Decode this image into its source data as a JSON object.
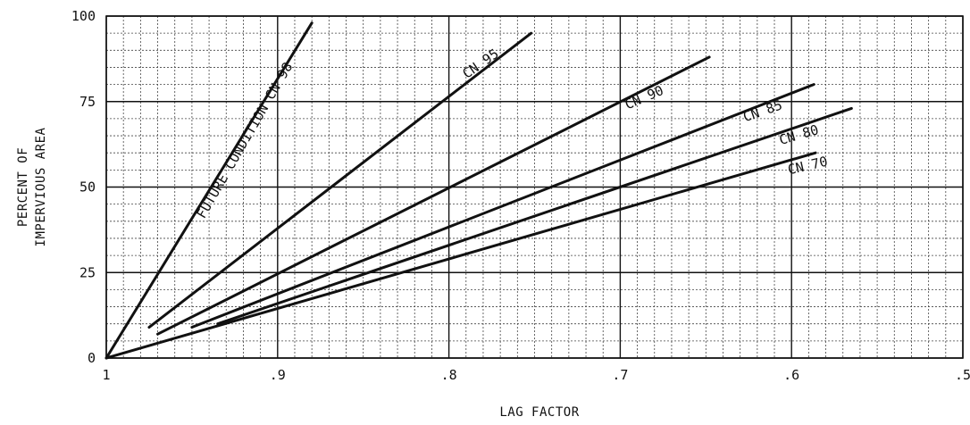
{
  "chart_data": {
    "type": "line",
    "title": "",
    "xlabel": "LAG FACTOR",
    "ylabel": [
      "PERCENT OF",
      "IMPERVIOUS AREA"
    ],
    "xlim": [
      1.0,
      0.5
    ],
    "ylim": [
      0,
      100
    ],
    "x_reversed": true,
    "grid": true,
    "x_ticks": [
      {
        "value": 1.0,
        "label": "1"
      },
      {
        "value": 0.9,
        "label": ".9"
      },
      {
        "value": 0.8,
        "label": ".8"
      },
      {
        "value": 0.7,
        "label": ".7"
      },
      {
        "value": 0.6,
        "label": ".6"
      },
      {
        "value": 0.5,
        "label": ".5"
      }
    ],
    "y_ticks": [
      {
        "value": 0,
        "label": "0"
      },
      {
        "value": 25,
        "label": "25"
      },
      {
        "value": 50,
        "label": "50"
      },
      {
        "value": 75,
        "label": "75"
      },
      {
        "value": 100,
        "label": "100"
      }
    ],
    "series": [
      {
        "name": "FUTURE CONDITION CN 98",
        "x": [
          1.0,
          0.88
        ],
        "y": [
          0,
          98
        ],
        "label_at": [
          0.917,
          63
        ],
        "label_angle": -60
      },
      {
        "name": "CN 95",
        "x": [
          0.975,
          0.752
        ],
        "y": [
          9,
          95
        ],
        "label_at": [
          0.78,
          85
        ],
        "label_angle": -35
      },
      {
        "name": "CN 90",
        "x": [
          0.97,
          0.648
        ],
        "y": [
          7,
          88
        ],
        "label_at": [
          0.685,
          75
        ],
        "label_angle": -23
      },
      {
        "name": "CN 85",
        "x": [
          0.95,
          0.587
        ],
        "y": [
          9,
          80
        ],
        "label_at": [
          0.616,
          71
        ],
        "label_angle": -19
      },
      {
        "name": "CN 80",
        "x": [
          0.935,
          0.565
        ],
        "y": [
          10,
          73
        ],
        "label_at": [
          0.595,
          64
        ],
        "label_angle": -16
      },
      {
        "name": "CN 70",
        "x": [
          1.0,
          0.586
        ],
        "y": [
          0,
          60
        ],
        "label_at": [
          0.59,
          55
        ],
        "label_angle": -13
      }
    ]
  }
}
